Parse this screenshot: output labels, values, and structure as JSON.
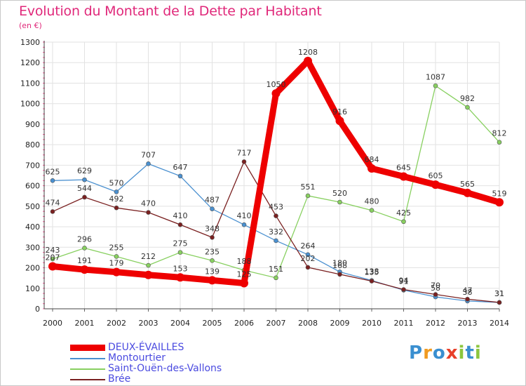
{
  "title": "Evolution du Montant de la Dette par Habitant",
  "unit": "(en €)",
  "logo": {
    "text": "Proxiti",
    "letters": [
      {
        "ch": "P",
        "color": "#3a8fd0"
      },
      {
        "ch": "r",
        "color": "#f09a20"
      },
      {
        "ch": "o",
        "color": "#3a8fd0"
      },
      {
        "ch": "x",
        "color": "#e8402a"
      },
      {
        "ch": "i",
        "color": "#8cc63e"
      },
      {
        "ch": "t",
        "color": "#3a8fd0"
      },
      {
        "ch": "i",
        "color": "#8cc63e"
      }
    ]
  },
  "chart_data": {
    "type": "line",
    "x": [
      "2000",
      "2001",
      "2002",
      "2003",
      "2004",
      "2005",
      "2006",
      "2007",
      "2008",
      "2009",
      "2010",
      "2011",
      "2012",
      "2013",
      "2014"
    ],
    "ylim": [
      0,
      1300
    ],
    "yticks": [
      0,
      100,
      200,
      300,
      400,
      500,
      600,
      700,
      800,
      900,
      1000,
      1100,
      1200,
      1300
    ],
    "grid": true,
    "legend": "bottom-left",
    "series": [
      {
        "name": "DEUX-ÉVAILLES",
        "color": "#ee0000",
        "values": [
          207,
          191,
          179,
          165,
          153,
          139,
          125,
          1050,
          1208,
          916,
          684,
          645,
          605,
          565,
          519
        ],
        "labels": [
          "207",
          "191",
          "179",
          "",
          "153",
          "139",
          "125",
          "1050",
          "1208",
          "916",
          "684",
          "645",
          "605",
          "565",
          "519"
        ]
      },
      {
        "name": "Montourtier",
        "color": "#4a90d0",
        "values": [
          625,
          629,
          570,
          707,
          647,
          487,
          410,
          332,
          264,
          180,
          138,
          91,
          58,
          38,
          31
        ],
        "labels": [
          "625",
          "629",
          "570",
          "707",
          "647",
          "487",
          "410",
          "332",
          "264",
          "180",
          "138",
          "91",
          "58",
          "38",
          "31"
        ]
      },
      {
        "name": "Saint-Ouën-des-Vallons",
        "color": "#88d060",
        "values": [
          243,
          296,
          255,
          212,
          275,
          235,
          188,
          151,
          551,
          520,
          480,
          425,
          1087,
          982,
          812
        ],
        "labels": [
          "243",
          "296",
          "255",
          "212",
          "275",
          "235",
          "188",
          "151",
          "551",
          "520",
          "480",
          "425",
          "1087",
          "982",
          "812"
        ]
      },
      {
        "name": "Brée",
        "color": "#7a2020",
        "values": [
          474,
          544,
          492,
          470,
          410,
          348,
          717,
          453,
          202,
          168,
          135,
          94,
          70,
          47,
          31
        ],
        "labels": [
          "474",
          "544",
          "492",
          "470",
          "410",
          "348",
          "717",
          "453",
          "202",
          "168",
          "135",
          "94",
          "70",
          "47",
          "31"
        ]
      }
    ]
  }
}
